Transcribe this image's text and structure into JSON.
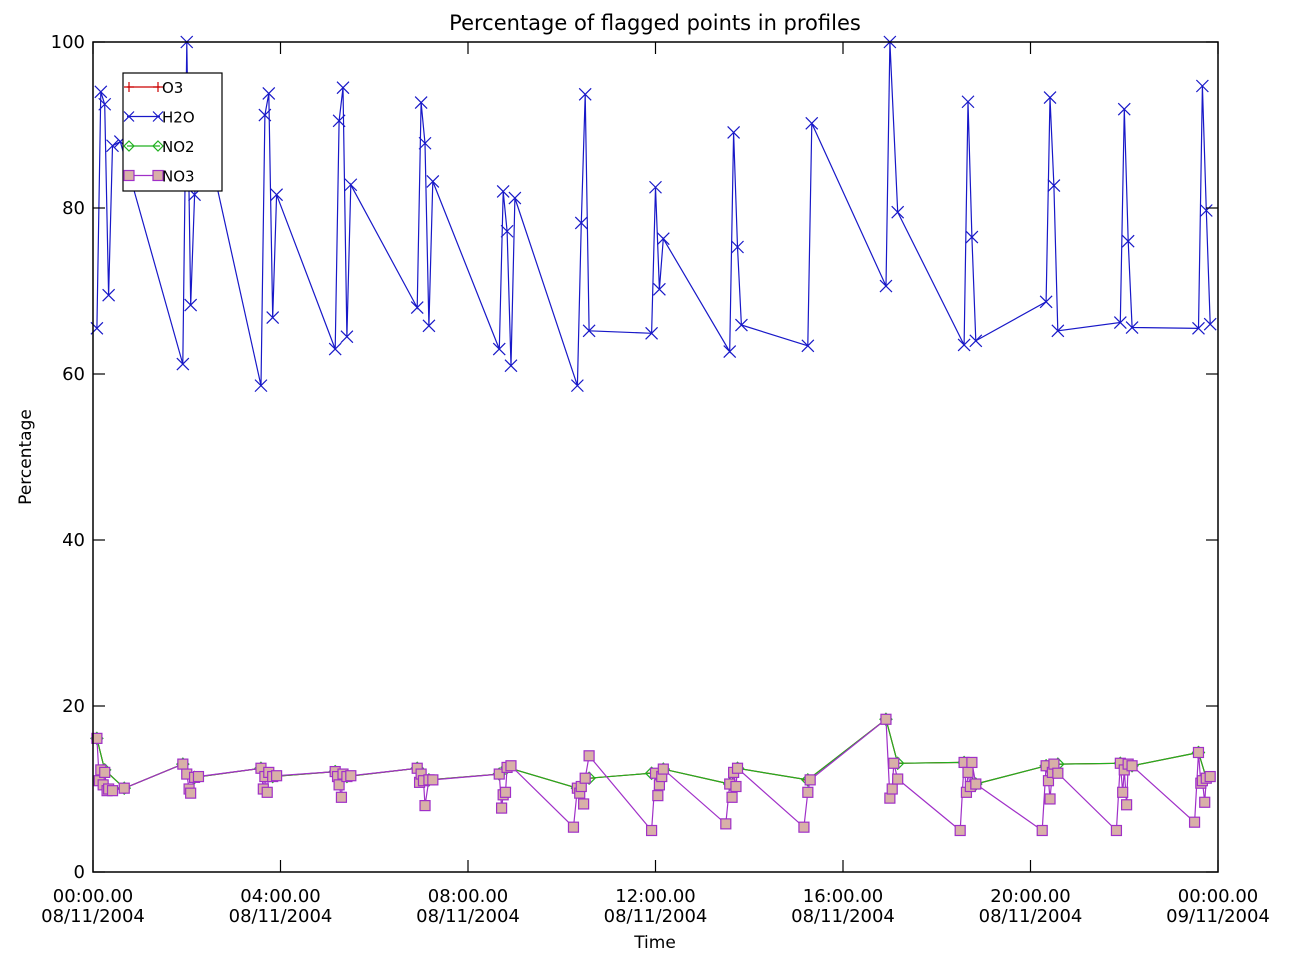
{
  "chart_data": {
    "type": "line",
    "title": "Percentage of flagged points in profiles",
    "xlabel": "Time",
    "ylabel": "Percentage",
    "xlim": [
      "2004-11-08T00:00",
      "2004-11-09T00:00"
    ],
    "ylim": [
      0,
      100
    ],
    "grid": false,
    "legend_position": "top-left",
    "x_tick_labels": [
      {
        "time": "00:00.00",
        "date": "08/11/2004"
      },
      {
        "time": "04:00.00",
        "date": "08/11/2004"
      },
      {
        "time": "08:00.00",
        "date": "08/11/2004"
      },
      {
        "time": "12:00.00",
        "date": "08/11/2004"
      },
      {
        "time": "16:00.00",
        "date": "08/11/2004"
      },
      {
        "time": "20:00.00",
        "date": "08/11/2004"
      },
      {
        "time": "00:00.00",
        "date": "09/11/2004"
      }
    ],
    "y_tick_labels": [
      "0",
      "20",
      "40",
      "60",
      "80",
      "100"
    ],
    "series": [
      {
        "name": "O3",
        "color": "#cc0000",
        "marker": "plus",
        "x": [
          "2004-11-08T00:05",
          "2004-11-08T00:15",
          "2004-11-08T00:40",
          "2004-11-08T01:55",
          "2004-11-08T02:10",
          "2004-11-08T03:35",
          "2004-11-08T03:50",
          "2004-11-08T05:10",
          "2004-11-08T05:25",
          "2004-11-08T06:55",
          "2004-11-08T07:10",
          "2004-11-08T08:40",
          "2004-11-08T08:50",
          "2004-11-08T10:20",
          "2004-11-08T10:35",
          "2004-11-08T11:55",
          "2004-11-08T12:10",
          "2004-11-08T13:35",
          "2004-11-08T13:45",
          "2004-11-08T15:15",
          "2004-11-08T16:55",
          "2004-11-08T17:10",
          "2004-11-08T18:35",
          "2004-11-08T18:50",
          "2004-11-08T20:20",
          "2004-11-08T20:35",
          "2004-11-08T21:55",
          "2004-11-08T22:10",
          "2004-11-08T23:35",
          "2004-11-08T23:45"
        ],
        "y": [
          16.1,
          12.3,
          10.1,
          13.0,
          11.4,
          12.5,
          11.5,
          12.1,
          11.5,
          12.5,
          11.1,
          11.8,
          12.6,
          10.1,
          11.3,
          11.9,
          12.4,
          10.6,
          12.5,
          11.1,
          18.4,
          13.1,
          13.2,
          10.6,
          12.8,
          13.0,
          13.1,
          12.8,
          14.4,
          11.3
        ]
      },
      {
        "name": "H2O",
        "color": "#1818c8",
        "marker": "x",
        "x": [
          "2004-11-08T00:05",
          "2004-11-08T00:10",
          "2004-11-08T00:15",
          "2004-11-08T00:20",
          "2004-11-08T00:25",
          "2004-11-08T00:35",
          "2004-11-08T01:55",
          "2004-11-08T02:00",
          "2004-11-08T02:05",
          "2004-11-08T02:10",
          "2004-11-08T02:20",
          "2004-11-08T03:35",
          "2004-11-08T03:40",
          "2004-11-08T03:45",
          "2004-11-08T03:50",
          "2004-11-08T03:55",
          "2004-11-08T05:10",
          "2004-11-08T05:15",
          "2004-11-08T05:20",
          "2004-11-08T05:25",
          "2004-11-08T05:30",
          "2004-11-08T06:55",
          "2004-11-08T07:00",
          "2004-11-08T07:05",
          "2004-11-08T07:10",
          "2004-11-08T07:15",
          "2004-11-08T08:40",
          "2004-11-08T08:45",
          "2004-11-08T08:50",
          "2004-11-08T08:55",
          "2004-11-08T09:00",
          "2004-11-08T10:20",
          "2004-11-08T10:25",
          "2004-11-08T10:30",
          "2004-11-08T10:35",
          "2004-11-08T11:55",
          "2004-11-08T12:00",
          "2004-11-08T12:05",
          "2004-11-08T12:10",
          "2004-11-08T13:35",
          "2004-11-08T13:40",
          "2004-11-08T13:45",
          "2004-11-08T13:50",
          "2004-11-08T15:15",
          "2004-11-08T15:20",
          "2004-11-08T16:55",
          "2004-11-08T17:00",
          "2004-11-08T17:10",
          "2004-11-08T18:35",
          "2004-11-08T18:40",
          "2004-11-08T18:45",
          "2004-11-08T18:50",
          "2004-11-08T20:20",
          "2004-11-08T20:25",
          "2004-11-08T20:30",
          "2004-11-08T20:35",
          "2004-11-08T21:55",
          "2004-11-08T22:00",
          "2004-11-08T22:05",
          "2004-11-08T22:10",
          "2004-11-08T23:35",
          "2004-11-08T23:40",
          "2004-11-08T23:45",
          "2004-11-08T23:50"
        ],
        "y": [
          65.5,
          94.0,
          92.5,
          69.5,
          87.5,
          88.0,
          61.2,
          100.0,
          68.3,
          81.6,
          90.5,
          58.6,
          91.2,
          93.8,
          66.8,
          81.6,
          63.0,
          90.5,
          94.5,
          64.5,
          82.8,
          68.0,
          92.7,
          87.8,
          65.8,
          83.2,
          63.0,
          82.0,
          77.2,
          61.0,
          81.2,
          58.6,
          78.2,
          93.7,
          65.2,
          64.9,
          82.5,
          70.2,
          76.3,
          62.7,
          89.1,
          75.3,
          65.9,
          63.4,
          90.2,
          70.6,
          100.0,
          79.5,
          63.5,
          92.8,
          76.5,
          64.0,
          68.7,
          93.3,
          82.7,
          65.2,
          66.2,
          91.9,
          76.0,
          65.6,
          65.5,
          94.7,
          79.7,
          66.0
        ]
      },
      {
        "name": "NO2",
        "color": "#20b020",
        "marker": "diamond",
        "x": [
          "2004-11-08T00:05",
          "2004-11-08T00:15",
          "2004-11-08T00:40",
          "2004-11-08T01:55",
          "2004-11-08T02:10",
          "2004-11-08T03:35",
          "2004-11-08T03:50",
          "2004-11-08T05:10",
          "2004-11-08T05:25",
          "2004-11-08T06:55",
          "2004-11-08T07:10",
          "2004-11-08T08:40",
          "2004-11-08T08:50",
          "2004-11-08T10:20",
          "2004-11-08T10:35",
          "2004-11-08T11:55",
          "2004-11-08T12:10",
          "2004-11-08T13:35",
          "2004-11-08T13:45",
          "2004-11-08T15:15",
          "2004-11-08T16:55",
          "2004-11-08T17:10",
          "2004-11-08T18:35",
          "2004-11-08T18:50",
          "2004-11-08T20:20",
          "2004-11-08T20:35",
          "2004-11-08T21:55",
          "2004-11-08T22:10",
          "2004-11-08T23:35",
          "2004-11-08T23:45"
        ],
        "y": [
          16.1,
          12.3,
          10.1,
          13.0,
          11.4,
          12.5,
          11.5,
          12.1,
          11.5,
          12.5,
          11.1,
          11.8,
          12.6,
          10.1,
          11.3,
          11.9,
          12.4,
          10.6,
          12.5,
          11.1,
          18.4,
          13.1,
          13.2,
          10.6,
          12.8,
          13.0,
          13.1,
          12.8,
          14.4,
          11.3
        ]
      },
      {
        "name": "NO3",
        "color": "#a030c8",
        "marker": "square",
        "x": [
          "2004-11-08T00:05",
          "2004-11-08T00:08",
          "2004-11-08T00:10",
          "2004-11-08T00:13",
          "2004-11-08T00:15",
          "2004-11-08T00:18",
          "2004-11-08T00:20",
          "2004-11-08T00:25",
          "2004-11-08T00:40",
          "2004-11-08T01:55",
          "2004-11-08T02:00",
          "2004-11-08T02:03",
          "2004-11-08T02:05",
          "2004-11-08T02:10",
          "2004-11-08T02:15",
          "2004-11-08T03:35",
          "2004-11-08T03:38",
          "2004-11-08T03:40",
          "2004-11-08T03:43",
          "2004-11-08T03:45",
          "2004-11-08T03:50",
          "2004-11-08T03:55",
          "2004-11-08T05:10",
          "2004-11-08T05:13",
          "2004-11-08T05:15",
          "2004-11-08T05:18",
          "2004-11-08T05:20",
          "2004-11-08T05:25",
          "2004-11-08T05:30",
          "2004-11-08T06:55",
          "2004-11-08T06:58",
          "2004-11-08T07:00",
          "2004-11-08T07:03",
          "2004-11-08T07:05",
          "2004-11-08T07:10",
          "2004-11-08T07:15",
          "2004-11-08T08:40",
          "2004-11-08T08:43",
          "2004-11-08T08:45",
          "2004-11-08T08:48",
          "2004-11-08T08:50",
          "2004-11-08T08:55",
          "2004-11-08T10:15",
          "2004-11-08T10:20",
          "2004-11-08T10:23",
          "2004-11-08T10:25",
          "2004-11-08T10:28",
          "2004-11-08T10:30",
          "2004-11-08T10:35",
          "2004-11-08T11:55",
          "2004-11-08T12:00",
          "2004-11-08T12:03",
          "2004-11-08T12:05",
          "2004-11-08T12:08",
          "2004-11-08T12:10",
          "2004-11-08T13:30",
          "2004-11-08T13:35",
          "2004-11-08T13:38",
          "2004-11-08T13:40",
          "2004-11-08T13:43",
          "2004-11-08T13:45",
          "2004-11-08T15:10",
          "2004-11-08T15:15",
          "2004-11-08T15:18",
          "2004-11-08T16:55",
          "2004-11-08T17:00",
          "2004-11-08T17:03",
          "2004-11-08T17:05",
          "2004-11-08T17:10",
          "2004-11-08T18:30",
          "2004-11-08T18:35",
          "2004-11-08T18:38",
          "2004-11-08T18:40",
          "2004-11-08T18:43",
          "2004-11-08T18:45",
          "2004-11-08T18:50",
          "2004-11-08T20:15",
          "2004-11-08T20:20",
          "2004-11-08T20:23",
          "2004-11-08T20:25",
          "2004-11-08T20:28",
          "2004-11-08T20:30",
          "2004-11-08T20:35",
          "2004-11-08T21:50",
          "2004-11-08T21:55",
          "2004-11-08T21:58",
          "2004-11-08T22:00",
          "2004-11-08T22:03",
          "2004-11-08T22:05",
          "2004-11-08T22:10",
          "2004-11-08T23:30",
          "2004-11-08T23:35",
          "2004-11-08T23:38",
          "2004-11-08T23:40",
          "2004-11-08T23:43",
          "2004-11-08T23:45",
          "2004-11-08T23:50"
        ],
        "y": [
          16.1,
          11.0,
          12.3,
          10.5,
          12.0,
          9.8,
          10.0,
          9.8,
          10.1,
          13.0,
          11.8,
          10.0,
          9.5,
          11.4,
          11.5,
          12.5,
          10.0,
          11.5,
          9.6,
          12.0,
          11.5,
          11.6,
          12.1,
          11.5,
          10.5,
          9.0,
          11.8,
          11.5,
          11.6,
          12.5,
          10.8,
          11.8,
          11.0,
          8.0,
          11.1,
          11.1,
          11.8,
          7.7,
          9.3,
          9.6,
          12.6,
          12.8,
          5.4,
          10.1,
          9.5,
          10.3,
          8.2,
          11.3,
          14.0,
          5.0,
          11.9,
          9.2,
          10.5,
          11.5,
          12.4,
          5.8,
          10.6,
          9.0,
          12.0,
          10.3,
          12.5,
          5.4,
          9.6,
          11.1,
          18.4,
          8.9,
          10.0,
          13.1,
          11.2,
          5.0,
          13.2,
          9.6,
          12.0,
          10.3,
          13.2,
          10.6,
          5.0,
          12.8,
          11.0,
          8.8,
          12.0,
          13.0,
          11.9,
          5.0,
          13.1,
          9.6,
          12.3,
          8.1,
          13.0,
          12.8,
          6.0,
          14.4,
          10.7,
          11.0,
          8.4,
          11.3,
          11.5
        ]
      }
    ]
  }
}
